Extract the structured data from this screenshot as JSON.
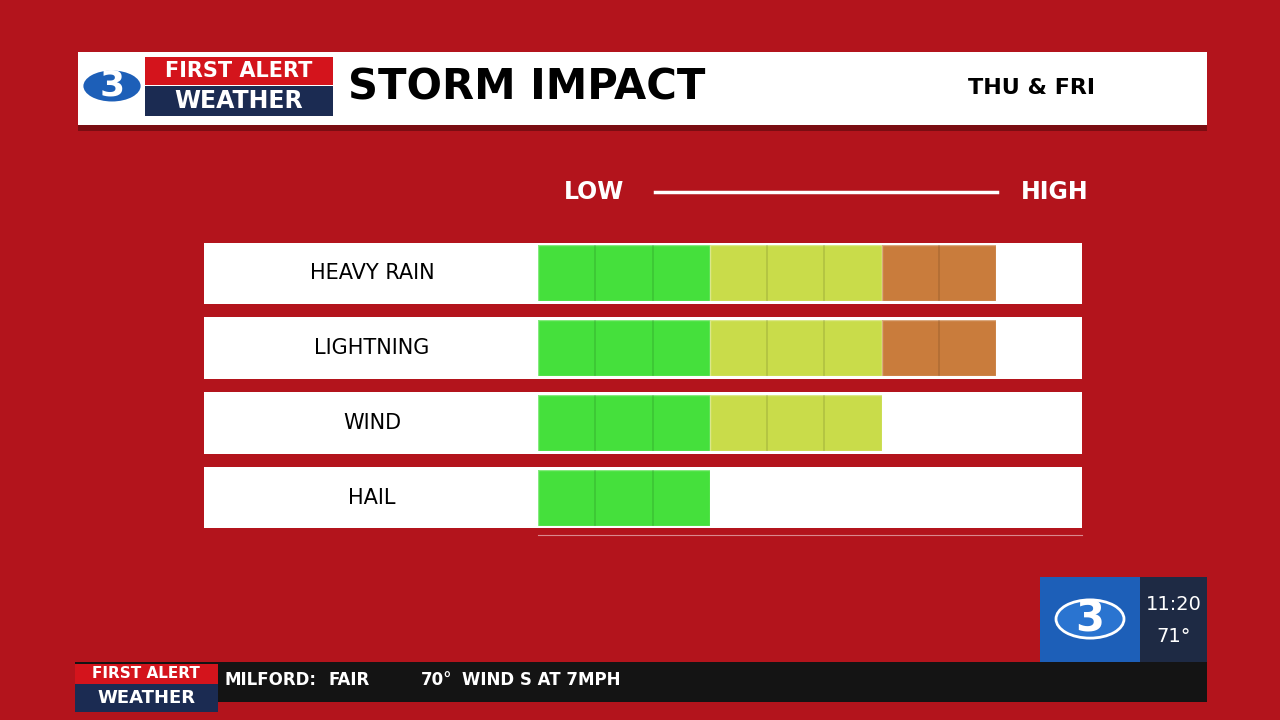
{
  "header": {
    "logo": {
      "number": "3",
      "line1": "FIRST ALERT",
      "line2": "WEATHER"
    },
    "title": "STORM IMPACT",
    "period": "THU & FRI"
  },
  "chart_data": {
    "type": "bar",
    "orientation": "horizontal",
    "stacked": true,
    "tick_labels": false,
    "annotations": [
      "LOW",
      "HIGH"
    ],
    "categories": [
      "HEAVY RAIN",
      "LIGHTNING",
      "WIND",
      "HAIL"
    ],
    "series": [
      {
        "color": "#45e03c",
        "values": [
          3,
          3,
          3,
          3
        ]
      },
      {
        "color": "#c9dc4a",
        "values": [
          3,
          3,
          3,
          0
        ]
      },
      {
        "color": "#c97c3c",
        "values": [
          2,
          2,
          0,
          0
        ]
      }
    ],
    "xlim": [
      0,
      9.5
    ]
  },
  "station_bug": {
    "number": "3",
    "time": "11:20",
    "temperature": "71°"
  },
  "ticker": {
    "logo_line1": "FIRST ALERT",
    "logo_line2": "WEATHER",
    "location": "MILFORD:",
    "condition": "FAIR",
    "temperature": "70°",
    "wind": "WIND S AT 7MPH"
  }
}
